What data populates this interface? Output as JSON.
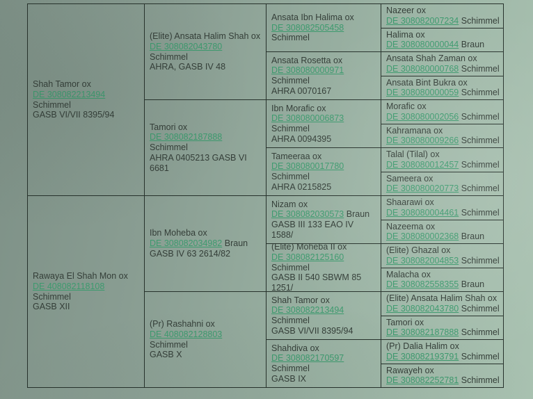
{
  "theme": {
    "background_color": "#8fa397",
    "border_color": "#26312b",
    "text_color": "#343e38",
    "link_color": "#3d9a6e"
  },
  "pedigree": {
    "gen1": [
      {
        "name": "Shah Tamor ox",
        "reg": "DE 308082213494",
        "coat": "Schimmel",
        "extra": "GASB VI/VII 8395/94"
      },
      {
        "name": "Rawaya El Shah Mon ox",
        "reg": "DE 408082118108",
        "coat": "Schimmel",
        "extra": "GASB XII"
      }
    ],
    "gen2": [
      {
        "name": "(Elite) Ansata Halim Shah ox",
        "reg": "DE 308082043780",
        "coat": "Schimmel",
        "extra": "AHRA, GASB IV 48"
      },
      {
        "name": "Tamori ox",
        "reg": "DE 308082187888",
        "coat": "Schimmel",
        "extra": "AHRA 0405213 GASB VI 6681"
      },
      {
        "name": "Ibn Moheba ox",
        "reg": "DE 308082034982",
        "coat": "Braun",
        "extra": "GASB IV 63 2614/82"
      },
      {
        "name": "(Pr) Rashahni ox",
        "reg": "DE 408082128803",
        "coat": "Schimmel",
        "extra": "GASB X"
      }
    ],
    "gen3": [
      {
        "name": "Ansata Ibn Halima ox",
        "reg": "DE 308082505458",
        "coat": "Schimmel"
      },
      {
        "name": "Ansata Rosetta ox",
        "reg": "DE 308080000971",
        "coat": "Schimmel",
        "extra": "AHRA 0070167"
      },
      {
        "name": "Ibn Morafic ox",
        "reg": "DE 308080006873",
        "coat": "Schimmel",
        "extra": "AHRA 0094395"
      },
      {
        "name": "Tameeraa ox",
        "reg": "DE 308080017780",
        "coat": "Schimmel",
        "extra": "AHRA 0215825"
      },
      {
        "name": "Nizam ox",
        "reg": "DE 308082030573",
        "coat": "Braun",
        "extra": "GASB III 133 EAO IV 1588/"
      },
      {
        "name": "(Elite) Moheba II ox",
        "reg": "DE 308082125160",
        "coat": "Schimmel",
        "extra": "GASB II 540 SBWM 85 1251/"
      },
      {
        "name": "Shah Tamor ox",
        "reg": "DE 308082213494",
        "coat": "Schimmel",
        "extra": "GASB VI/VII 8395/94"
      },
      {
        "name": "Shahdiva ox",
        "reg": "DE 308082170597",
        "coat": "Schimmel",
        "extra": "GASB IX"
      }
    ],
    "gen4": [
      {
        "name": "Nazeer ox",
        "reg": "DE 308082007234",
        "coat": "Schimmel"
      },
      {
        "name": "Halima ox",
        "reg": "DE 308080000044",
        "coat": "Braun"
      },
      {
        "name": "Ansata Shah Zaman ox",
        "reg": "DE 308080000768",
        "coat": "Schimmel"
      },
      {
        "name": "Ansata Bint Bukra ox",
        "reg": "DE 308080000059",
        "coat": "Schimmel"
      },
      {
        "name": "Morafic ox",
        "reg": "DE 308080002056",
        "coat": "Schimmel"
      },
      {
        "name": "Kahramana ox",
        "reg": "DE 308080009266",
        "coat": "Schimmel"
      },
      {
        "name": "Talal (Tilal) ox",
        "reg": "DE 308080012457",
        "coat": "Schimmel"
      },
      {
        "name": "Sameera ox",
        "reg": "DE 308080020773",
        "coat": "Schimmel"
      },
      {
        "name": "Shaarawi ox",
        "reg": "DE 308080004461",
        "coat": "Schimmel"
      },
      {
        "name": "Nazeema ox",
        "reg": "DE 308080002368",
        "coat": "Braun"
      },
      {
        "name": "(Elite) Ghazal ox",
        "reg": "DE 308082004853",
        "coat": "Schimmel"
      },
      {
        "name": "Malacha ox",
        "reg": "DE 308082558355",
        "coat": "Braun"
      },
      {
        "name": "(Elite) Ansata Halim Shah ox",
        "reg": "DE 308082043780",
        "coat": "Schimmel"
      },
      {
        "name": "Tamori ox",
        "reg": "DE 308082187888",
        "coat": "Schimmel"
      },
      {
        "name": "(Pr) Dalia Halim ox",
        "reg": "DE 308082193791",
        "coat": "Schimmel"
      },
      {
        "name": "Rawayeh ox",
        "reg": "DE 308082252781",
        "coat": "Schimmel"
      }
    ]
  }
}
